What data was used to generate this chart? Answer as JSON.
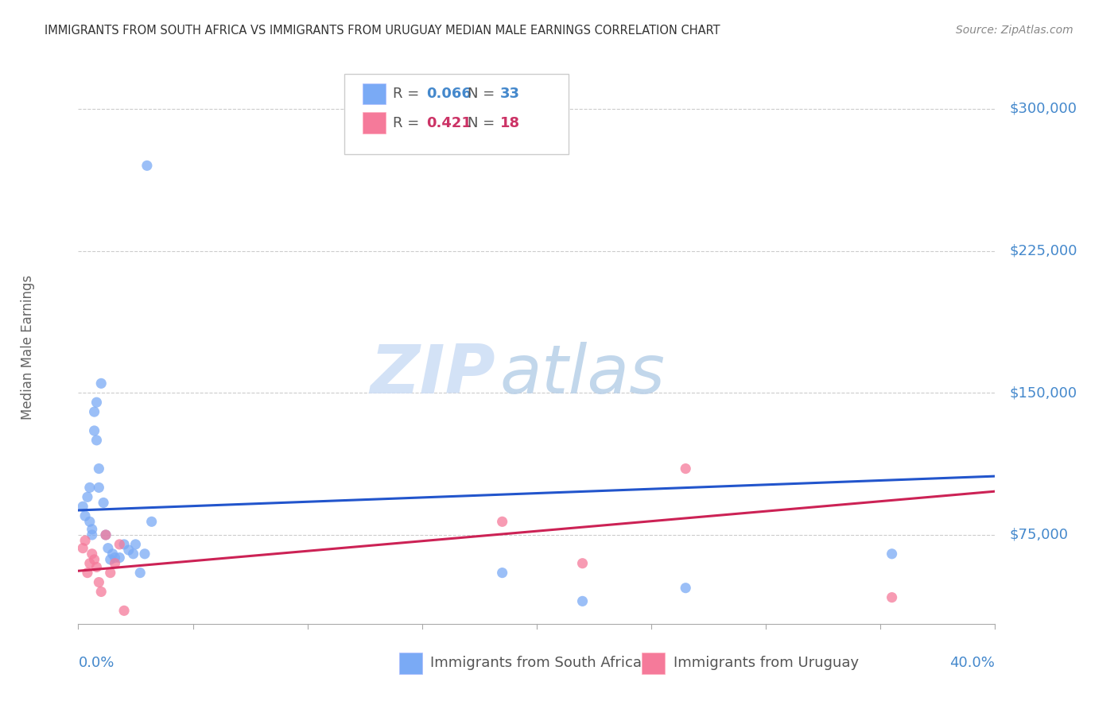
{
  "title": "IMMIGRANTS FROM SOUTH AFRICA VS IMMIGRANTS FROM URUGUAY MEDIAN MALE EARNINGS CORRELATION CHART",
  "source": "Source: ZipAtlas.com",
  "ylabel": "Median Male Earnings",
  "yticks": [
    75000,
    150000,
    225000,
    300000
  ],
  "ytick_labels": [
    "$75,000",
    "$150,000",
    "$225,000",
    "$300,000"
  ],
  "xlim": [
    0.0,
    0.4
  ],
  "ylim": [
    28000,
    320000
  ],
  "watermark_zip": "ZIP",
  "watermark_atlas": "atlas",
  "legend_r1": "0.066",
  "legend_n1": "33",
  "legend_r2": "0.421",
  "legend_n2": "18",
  "south_africa_color": "#7aaaf5",
  "uruguay_color": "#f57a9a",
  "sa_trend_color": "#2255cc",
  "uru_trend_color": "#cc2255",
  "south_africa_x": [
    0.002,
    0.003,
    0.004,
    0.005,
    0.005,
    0.006,
    0.006,
    0.007,
    0.007,
    0.008,
    0.008,
    0.009,
    0.009,
    0.01,
    0.011,
    0.012,
    0.013,
    0.014,
    0.015,
    0.016,
    0.018,
    0.02,
    0.022,
    0.024,
    0.025,
    0.027,
    0.029,
    0.03,
    0.032,
    0.185,
    0.22,
    0.265,
    0.355
  ],
  "south_africa_y": [
    90000,
    85000,
    95000,
    100000,
    82000,
    78000,
    75000,
    130000,
    140000,
    145000,
    125000,
    110000,
    100000,
    155000,
    92000,
    75000,
    68000,
    62000,
    65000,
    63000,
    63000,
    70000,
    67000,
    65000,
    70000,
    55000,
    65000,
    270000,
    82000,
    55000,
    40000,
    47000,
    65000
  ],
  "uruguay_x": [
    0.002,
    0.003,
    0.004,
    0.005,
    0.006,
    0.007,
    0.008,
    0.009,
    0.01,
    0.012,
    0.014,
    0.016,
    0.018,
    0.02,
    0.185,
    0.22,
    0.265,
    0.355
  ],
  "uruguay_y": [
    68000,
    72000,
    55000,
    60000,
    65000,
    62000,
    58000,
    50000,
    45000,
    75000,
    55000,
    60000,
    70000,
    35000,
    82000,
    60000,
    110000,
    42000
  ],
  "sa_trend_x": [
    0.0,
    0.4
  ],
  "sa_trend_y": [
    88000,
    106000
  ],
  "uru_trend_x": [
    0.0,
    0.4
  ],
  "uru_trend_y": [
    56000,
    98000
  ]
}
